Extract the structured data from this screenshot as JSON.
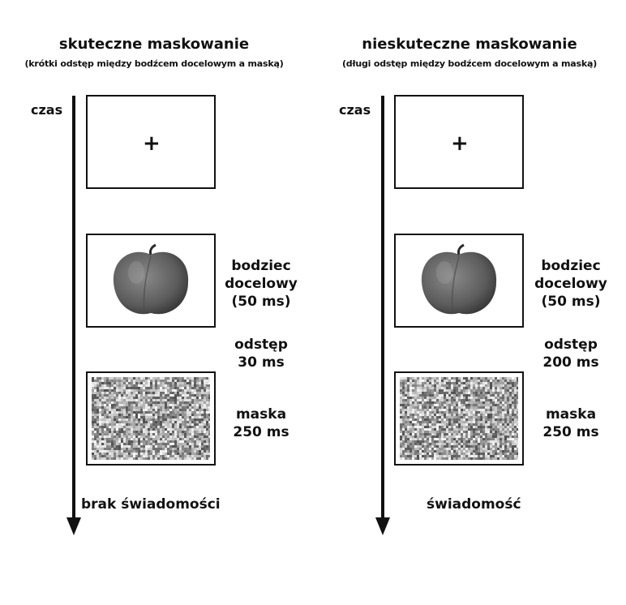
{
  "panels": [
    {
      "title": "skuteczne maskowanie",
      "subtitle": "(krótki odstęp między bodźcem docelowym a maską)",
      "time_label": "czas",
      "fixation": "+",
      "target_label": "bodziec\ndocelowy\n(50 ms)",
      "gap_label": "odstęp\n30 ms",
      "mask_label": "maska\n250 ms",
      "outcome": "brak świadomości"
    },
    {
      "title": "nieskuteczne maskowanie",
      "subtitle": "(długi odstęp między bodźcem docelowym a maską)",
      "time_label": "czas",
      "fixation": "+",
      "target_label": "bodziec\ndocelowy\n(50 ms)",
      "gap_label": "odstęp\n200 ms",
      "mask_label": "maska\n250 ms",
      "outcome": "świadomość"
    }
  ],
  "colors": {
    "ink": "#111111",
    "apple": "#6e6e6e",
    "noise_bg": "#bdbdbd"
  }
}
